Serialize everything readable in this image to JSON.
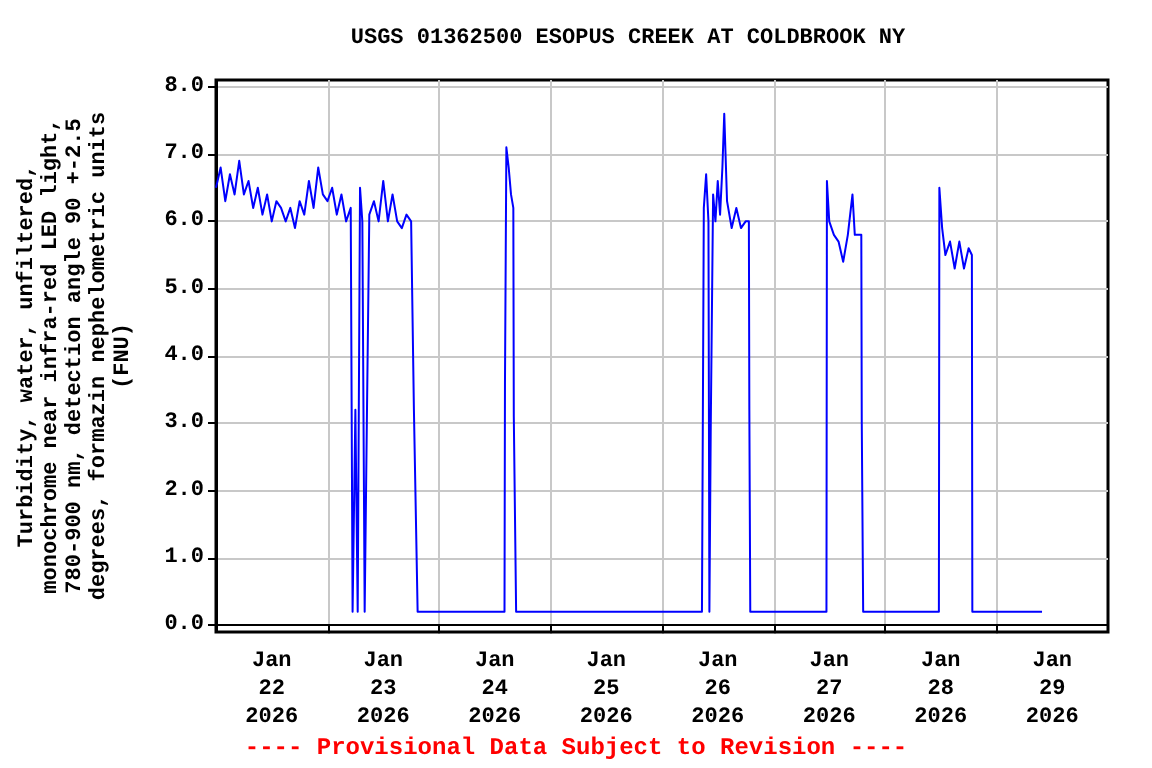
{
  "chart_data": {
    "type": "line",
    "title": "USGS 01362500 ESOPUS CREEK AT COLDBROOK NY",
    "ylabel": "Turbidity, water, unfiltered,\nmonochrome near infra-red LED light,\n780-900 nm, detection angle 90 +-2.5\ndegrees, formazin nephelometric units\n(FNU)",
    "annotations": [
      "---- Provisional Data Subject to Revision ----"
    ],
    "x": [
      "2026-01-22T00:00",
      "2026-01-22T01:00",
      "2026-01-22T02:00",
      "2026-01-22T03:00",
      "2026-01-22T04:00",
      "2026-01-22T05:00",
      "2026-01-22T06:00",
      "2026-01-22T07:00",
      "2026-01-22T08:00",
      "2026-01-22T09:00",
      "2026-01-22T10:00",
      "2026-01-22T11:00",
      "2026-01-22T12:00",
      "2026-01-22T13:00",
      "2026-01-22T14:00",
      "2026-01-22T15:00",
      "2026-01-22T16:00",
      "2026-01-22T17:00",
      "2026-01-22T18:00",
      "2026-01-22T19:00",
      "2026-01-22T20:00",
      "2026-01-22T21:00",
      "2026-01-22T22:00",
      "2026-01-22T23:00",
      "2026-01-23T00:00",
      "2026-01-23T01:00",
      "2026-01-23T02:00",
      "2026-01-23T03:00",
      "2026-01-23T04:00",
      "2026-01-23T05:00",
      "2026-01-23T05:24",
      "2026-01-23T06:00",
      "2026-01-23T06:30",
      "2026-01-23T07:00",
      "2026-01-23T07:30",
      "2026-01-23T08:00",
      "2026-01-23T08:30",
      "2026-01-23T09:00",
      "2026-01-23T10:00",
      "2026-01-23T11:00",
      "2026-01-23T12:00",
      "2026-01-23T13:00",
      "2026-01-23T14:00",
      "2026-01-23T15:00",
      "2026-01-23T16:00",
      "2026-01-23T17:00",
      "2026-01-23T18:00",
      "2026-01-23T18:36",
      "2026-01-23T19:24",
      "2026-01-24T14:06",
      "2026-01-24T14:12",
      "2026-01-24T14:30",
      "2026-01-24T15:00",
      "2026-01-24T15:30",
      "2026-01-24T16:00",
      "2026-01-24T16:06",
      "2026-01-24T16:36",
      "2026-01-26T08:36",
      "2026-01-26T08:48",
      "2026-01-26T09:00",
      "2026-01-26T09:30",
      "2026-01-26T10:00",
      "2026-01-26T10:12",
      "2026-01-26T10:30",
      "2026-01-26T11:00",
      "2026-01-26T11:30",
      "2026-01-26T12:00",
      "2026-01-26T12:30",
      "2026-01-26T13:00",
      "2026-01-26T13:24",
      "2026-01-26T14:00",
      "2026-01-26T15:00",
      "2026-01-26T16:00",
      "2026-01-26T17:00",
      "2026-01-26T18:00",
      "2026-01-26T18:42",
      "2026-01-26T18:48",
      "2026-01-26T19:00",
      "2026-01-27T11:24",
      "2026-01-27T11:30",
      "2026-01-27T12:00",
      "2026-01-27T13:00",
      "2026-01-27T14:00",
      "2026-01-27T15:00",
      "2026-01-27T16:00",
      "2026-01-27T17:00",
      "2026-01-27T17:30",
      "2026-01-27T18:54",
      "2026-01-27T19:00",
      "2026-01-27T19:18",
      "2026-01-28T11:36",
      "2026-01-28T11:42",
      "2026-01-28T12:18",
      "2026-01-28T13:00",
      "2026-01-28T14:00",
      "2026-01-28T15:00",
      "2026-01-28T16:00",
      "2026-01-28T17:00",
      "2026-01-28T18:00",
      "2026-01-28T18:42",
      "2026-01-28T18:48",
      "2026-01-29T09:48"
    ],
    "series": [
      {
        "color": "#0000ff",
        "values": [
          6.5,
          6.8,
          6.3,
          6.7,
          6.4,
          6.9,
          6.4,
          6.6,
          6.2,
          6.5,
          6.1,
          6.4,
          6.0,
          6.3,
          6.2,
          6.0,
          6.2,
          5.9,
          6.3,
          6.1,
          6.6,
          6.2,
          6.8,
          6.4,
          6.3,
          6.5,
          6.1,
          6.4,
          6.0,
          6.2,
          0.2,
          3.2,
          0.2,
          6.5,
          6.0,
          0.2,
          3.2,
          6.1,
          6.3,
          6.0,
          6.6,
          6.0,
          6.4,
          6.0,
          5.9,
          6.1,
          6.0,
          3.2,
          0.2,
          0.2,
          3.6,
          7.1,
          6.8,
          6.4,
          6.2,
          3.1,
          0.2,
          0.2,
          3.2,
          6.2,
          6.7,
          6.0,
          0.2,
          3.0,
          6.4,
          6.0,
          6.6,
          6.1,
          6.8,
          7.6,
          6.3,
          5.9,
          6.2,
          5.9,
          6.0,
          6.0,
          3.2,
          0.2,
          0.2,
          6.6,
          6.0,
          5.8,
          5.7,
          5.4,
          5.8,
          6.4,
          5.8,
          5.8,
          3.0,
          0.2,
          0.2,
          6.5,
          5.9,
          5.5,
          5.7,
          5.3,
          5.7,
          5.3,
          5.6,
          5.5,
          0.2,
          0.2
        ]
      }
    ],
    "xlim": [
      "2026-01-22T00:00",
      "2026-01-30T00:00"
    ],
    "xticks": [
      {
        "value": "2026-01-22T12:00",
        "label": "Jan\n22\n2026"
      },
      {
        "value": "2026-01-23T00:00",
        "label": null
      },
      {
        "value": "2026-01-23T12:00",
        "label": "Jan\n23\n2026"
      },
      {
        "value": "2026-01-24T00:00",
        "label": null
      },
      {
        "value": "2026-01-24T12:00",
        "label": "Jan\n24\n2026"
      },
      {
        "value": "2026-01-25T00:00",
        "label": null
      },
      {
        "value": "2026-01-25T12:00",
        "label": "Jan\n25\n2026"
      },
      {
        "value": "2026-01-26T00:00",
        "label": null
      },
      {
        "value": "2026-01-26T12:00",
        "label": "Jan\n26\n2026"
      },
      {
        "value": "2026-01-27T00:00",
        "label": null
      },
      {
        "value": "2026-01-27T12:00",
        "label": "Jan\n27\n2026"
      },
      {
        "value": "2026-01-28T00:00",
        "label": null
      },
      {
        "value": "2026-01-28T12:00",
        "label": "Jan\n28\n2026"
      },
      {
        "value": "2026-01-29T00:00",
        "label": null
      },
      {
        "value": "2026-01-29T12:00",
        "label": "Jan\n29\n2026"
      }
    ],
    "ylim": [
      -0.1,
      8.1
    ],
    "yticks": [
      {
        "value": 0,
        "label": "0.0"
      },
      {
        "value": 1,
        "label": "1.0"
      },
      {
        "value": 2,
        "label": "2.0"
      },
      {
        "value": 3,
        "label": "3.0"
      },
      {
        "value": 4,
        "label": "4.0"
      },
      {
        "value": 5,
        "label": "5.0"
      },
      {
        "value": 6,
        "label": "6.0"
      },
      {
        "value": 7,
        "label": "7.0"
      },
      {
        "value": 8,
        "label": "8.0"
      }
    ],
    "grid": true,
    "marker": "none",
    "line_style": "solid"
  }
}
